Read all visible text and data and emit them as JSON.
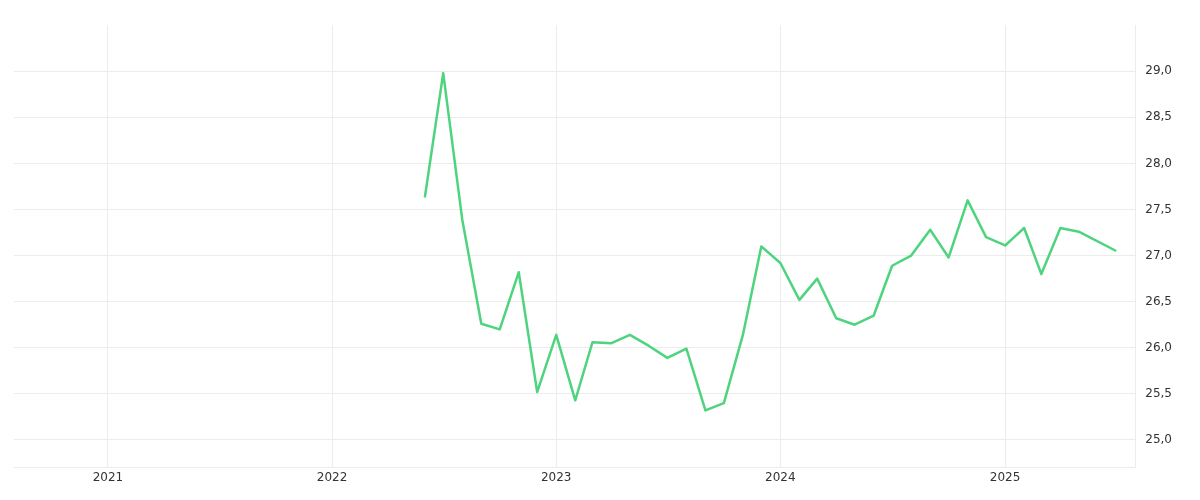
{
  "chart_data": {
    "type": "line",
    "x": [
      "2022-06",
      "2022-07",
      "2022-08",
      "2022-09",
      "2022-10",
      "2022-11",
      "2022-12",
      "2023-01",
      "2023-02",
      "2023-03",
      "2023-04",
      "2023-05",
      "2023-06",
      "2023-07",
      "2023-08",
      "2023-09",
      "2023-10",
      "2023-11",
      "2023-12",
      "2024-01",
      "2024-02",
      "2024-03",
      "2024-04",
      "2024-05",
      "2024-06",
      "2024-07",
      "2024-08",
      "2024-09",
      "2024-10",
      "2024-11",
      "2024-12",
      "2025-01",
      "2025-02",
      "2025-03",
      "2025-04",
      "2025-05",
      "2025-07"
    ],
    "series": [
      {
        "color": "#4ed47f",
        "values": [
          27.63,
          28.98,
          27.39,
          26.26,
          26.2,
          26.82,
          25.52,
          26.14,
          25.43,
          26.06,
          26.05,
          26.14,
          26.02,
          25.89,
          25.99,
          25.32,
          25.4,
          26.14,
          27.1,
          26.92,
          26.52,
          26.75,
          26.32,
          26.25,
          26.35,
          26.89,
          27.0,
          27.28,
          26.98,
          27.6,
          27.2,
          27.11,
          27.3,
          26.8,
          27.3,
          27.26,
          27.05
        ]
      }
    ],
    "xlim": [
      "2020-08",
      "2025-08"
    ],
    "xticks": [
      "2021",
      "2022",
      "2023",
      "2024",
      "2025"
    ],
    "ylim": [
      24.7,
      29.5
    ],
    "yticks": [
      {
        "value": 25,
        "label": "25,0"
      },
      {
        "value": 25.5,
        "label": "25,5"
      },
      {
        "value": 26,
        "label": "26,0"
      },
      {
        "value": 26.5,
        "label": "26,5"
      },
      {
        "value": 27,
        "label": "27,0"
      },
      {
        "value": 27.5,
        "label": "27,5"
      },
      {
        "value": 28,
        "label": "28,0"
      },
      {
        "value": 28.5,
        "label": "28,5"
      },
      {
        "value": 29,
        "label": "29,0"
      }
    ],
    "grid": true,
    "legend": false,
    "marker": "none",
    "line_style": "solid"
  }
}
